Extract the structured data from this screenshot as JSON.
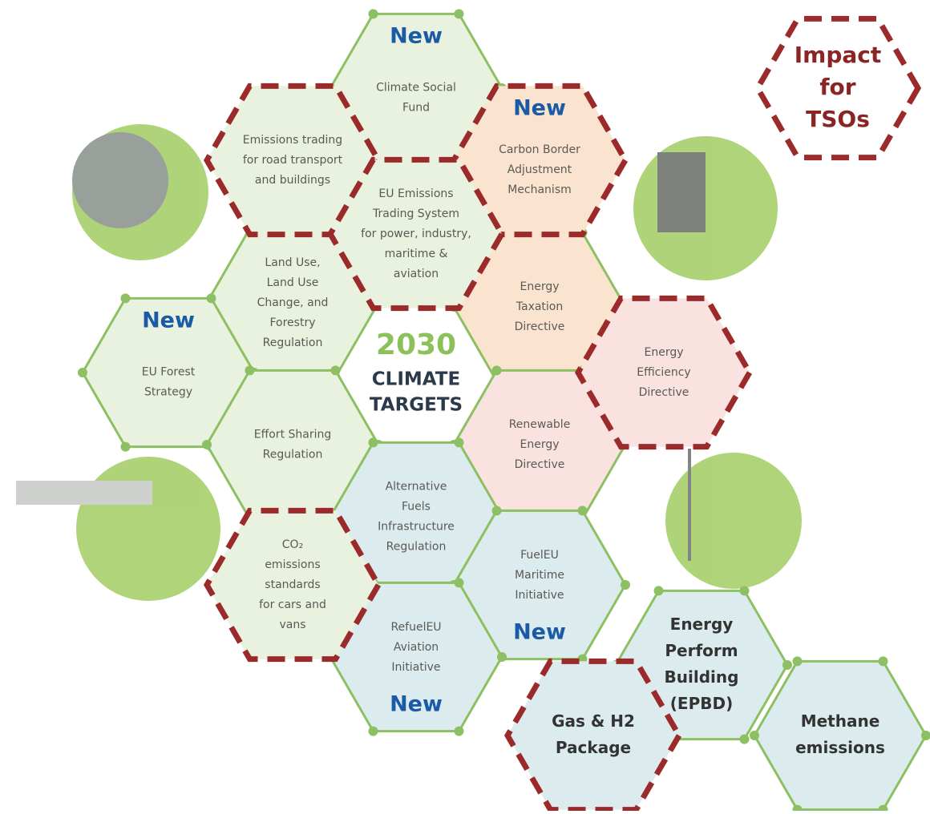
{
  "center": {
    "lines": [
      "2030",
      "CLIMATE",
      "TARGETS"
    ]
  },
  "legend": {
    "lines": [
      "Impact",
      "for",
      "TSOs"
    ],
    "tso_impact": true
  },
  "hexagons": [
    {
      "lines": [
        "Climate Social",
        "Fund"
      ],
      "badge": "New",
      "fill": "#e9f1df",
      "tso_impact": false
    },
    {
      "lines": [
        "Emissions trading",
        "for road transport",
        "and buildings"
      ],
      "fill": "#e9f1df",
      "tso_impact": true
    },
    {
      "lines": [
        "Carbon Border",
        "Adjustment",
        "Mechanism"
      ],
      "badge": "New",
      "fill": "#fbe4cf",
      "tso_impact": true
    },
    {
      "lines": [
        "EU Emissions",
        "Trading System",
        "for power, industry,",
        "maritime &",
        "aviation"
      ],
      "fill": "#e9f1df",
      "tso_impact": true
    },
    {
      "lines": [
        "Land Use,",
        "Land Use",
        "Change, and",
        "Forestry",
        "Regulation"
      ],
      "fill": "#e9f1df",
      "tso_impact": false
    },
    {
      "lines": [
        "Energy",
        "Taxation",
        "Directive"
      ],
      "fill": "#fbe4cf",
      "tso_impact": false
    },
    {
      "lines": [
        "EU Forest",
        "Strategy"
      ],
      "badge": "New",
      "fill": "#e9f1df",
      "tso_impact": false
    },
    {
      "lines": [
        "Energy",
        "Efficiency",
        "Directive"
      ],
      "fill": "#f9e2e0",
      "tso_impact": true
    },
    {
      "lines": [
        "Effort Sharing",
        "Regulation"
      ],
      "fill": "#e9f1df",
      "tso_impact": false
    },
    {
      "lines": [
        "Renewable",
        "Energy",
        "Directive"
      ],
      "fill": "#f9e2e0",
      "tso_impact": false
    },
    {
      "lines": [
        "Alternative",
        "Fuels",
        "Infrastructure",
        "Regulation"
      ],
      "fill": "#dcebee",
      "tso_impact": false
    },
    {
      "lines": [
        "CO₂",
        "emissions",
        "standards",
        "for cars and",
        "vans"
      ],
      "fill": "#e9f1df",
      "tso_impact": true
    },
    {
      "lines": [
        "FuelEU",
        "Maritime",
        "Initiative"
      ],
      "badge": "New",
      "fill": "#dcebee",
      "tso_impact": false
    },
    {
      "lines": [
        "RefuelEU",
        "Aviation",
        "Initiative"
      ],
      "badge": "New",
      "fill": "#dcebee",
      "tso_impact": false
    },
    {
      "lines": [
        "Energy",
        "Perform",
        "Building",
        "(EPBD)"
      ],
      "fill": "#dcebee",
      "tso_impact": false,
      "bold": true
    },
    {
      "lines": [
        "Gas & H2",
        "Package"
      ],
      "fill": "#dcebee",
      "tso_impact": true,
      "bold": true
    },
    {
      "lines": [
        "Methane",
        "emissions"
      ],
      "fill": "#dcebee",
      "tso_impact": false,
      "bold": true
    }
  ]
}
